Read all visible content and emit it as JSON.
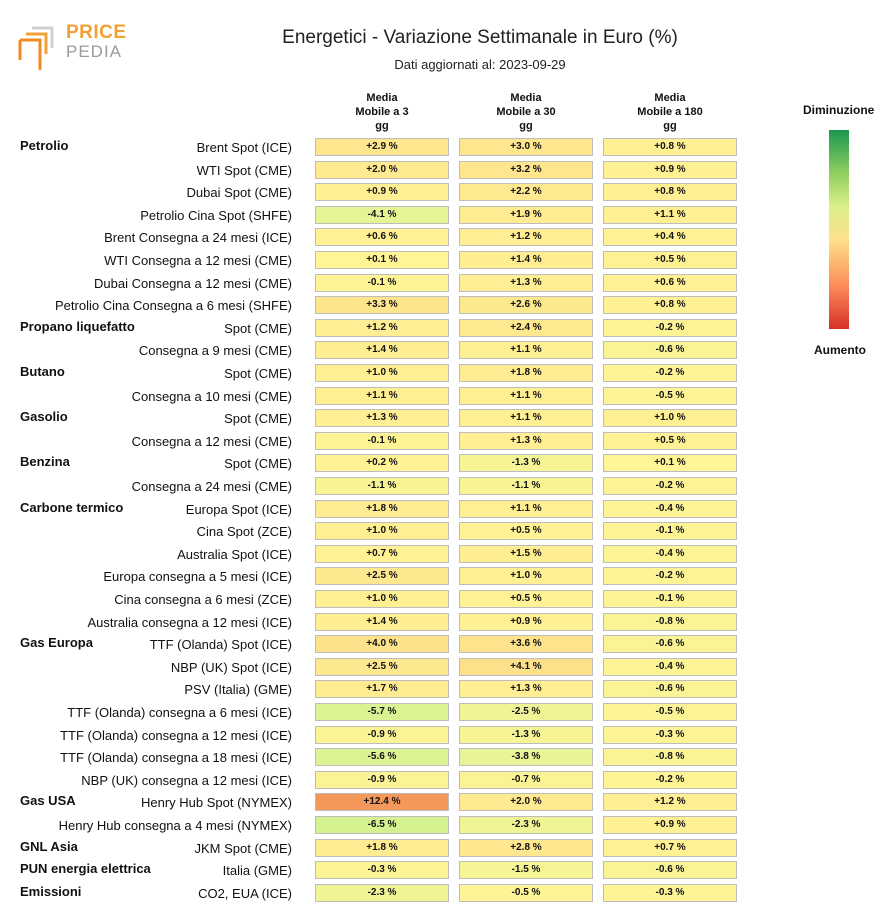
{
  "logo": {
    "line1": "PRICE",
    "line2": "PEDIA"
  },
  "title": "Energetici - Variazione Settimanale in Euro (%)",
  "subtitle": "Dati aggiornati al: 2023-09-29",
  "columns": [
    "Media\nMobile a 3\ngg",
    "Media\nMobile a 30\ngg",
    "Media\nMobile a 180\ngg"
  ],
  "legend": {
    "top": "Diminuzione",
    "bottom": "Aumento"
  },
  "colors": {
    "decrease": "#1a9850",
    "neutral": "#ffffbf",
    "increase": "#d73027"
  },
  "chart_data": {
    "type": "heatmap",
    "title": "Energetici - Variazione Settimanale in Euro (%)",
    "columns": [
      "Media Mobile a 3 gg",
      "Media Mobile a 30 gg",
      "Media Mobile a 180 gg"
    ],
    "groups": [
      {
        "name": "Petrolio",
        "rows": [
          {
            "label": "Brent Spot (ICE)",
            "values": [
              "+2.9 %",
              "+3.0 %",
              "+0.8 %"
            ]
          },
          {
            "label": "WTI Spot (CME)",
            "values": [
              "+2.0 %",
              "+3.2 %",
              "+0.9 %"
            ]
          },
          {
            "label": "Dubai Spot (CME)",
            "values": [
              "+0.9 %",
              "+2.2 %",
              "+0.8 %"
            ]
          },
          {
            "label": "Petrolio Cina Spot (SHFE)",
            "values": [
              "-4.1 %",
              "+1.9 %",
              "+1.1 %"
            ]
          },
          {
            "label": "Brent Consegna a 24 mesi (ICE)",
            "values": [
              "+0.6 %",
              "+1.2 %",
              "+0.4 %"
            ]
          },
          {
            "label": "WTI Consegna a 12 mesi (CME)",
            "values": [
              "+0.1 %",
              "+1.4 %",
              "+0.5 %"
            ]
          },
          {
            "label": "Dubai Consegna a 12 mesi (CME)",
            "values": [
              "-0.1 %",
              "+1.3 %",
              "+0.6 %"
            ]
          },
          {
            "label": "Petrolio Cina Consegna a 6 mesi (SHFE)",
            "values": [
              "+3.3 %",
              "+2.6 %",
              "+0.8 %"
            ]
          }
        ]
      },
      {
        "name": "Propano liquefatto",
        "rows": [
          {
            "label": "Spot (CME)",
            "values": [
              "+1.2 %",
              "+2.4 %",
              "-0.2 %"
            ]
          },
          {
            "label": "Consegna a 9 mesi (CME)",
            "values": [
              "+1.4 %",
              "+1.1 %",
              "-0.6 %"
            ]
          }
        ]
      },
      {
        "name": "Butano",
        "rows": [
          {
            "label": "Spot (CME)",
            "values": [
              "+1.0 %",
              "+1.8 %",
              "-0.2 %"
            ]
          },
          {
            "label": "Consegna a 10 mesi (CME)",
            "values": [
              "+1.1 %",
              "+1.1 %",
              "-0.5 %"
            ]
          }
        ]
      },
      {
        "name": "Gasolio",
        "rows": [
          {
            "label": "Spot (CME)",
            "values": [
              "+1.3 %",
              "+1.1 %",
              "+1.0 %"
            ]
          },
          {
            "label": "Consegna a 12 mesi (CME)",
            "values": [
              "-0.1 %",
              "+1.3 %",
              "+0.5 %"
            ]
          }
        ]
      },
      {
        "name": "Benzina",
        "rows": [
          {
            "label": "Spot (CME)",
            "values": [
              "+0.2 %",
              "-1.3 %",
              "+0.1 %"
            ]
          },
          {
            "label": "Consegna a 24 mesi (CME)",
            "values": [
              "-1.1 %",
              "-1.1 %",
              "-0.2 %"
            ]
          }
        ]
      },
      {
        "name": "Carbone termico",
        "rows": [
          {
            "label": "Europa Spot (ICE)",
            "values": [
              "+1.8 %",
              "+1.1 %",
              "-0.4 %"
            ]
          },
          {
            "label": "Cina Spot (ZCE)",
            "values": [
              "+1.0 %",
              "+0.5 %",
              "-0.1 %"
            ]
          },
          {
            "label": "Australia Spot (ICE)",
            "values": [
              "+0.7 %",
              "+1.5 %",
              "-0.4 %"
            ]
          },
          {
            "label": "Europa consegna a 5 mesi (ICE)",
            "values": [
              "+2.5 %",
              "+1.0 %",
              "-0.2 %"
            ]
          },
          {
            "label": "Cina consegna a 6 mesi (ZCE)",
            "values": [
              "+1.0 %",
              "+0.5 %",
              "-0.1 %"
            ]
          },
          {
            "label": "Australia consegna a 12 mesi (ICE)",
            "values": [
              "+1.4 %",
              "+0.9 %",
              "-0.8 %"
            ]
          }
        ]
      },
      {
        "name": "Gas Europa",
        "rows": [
          {
            "label": "TTF (Olanda) Spot (ICE)",
            "values": [
              "+4.0 %",
              "+3.6 %",
              "-0.6 %"
            ]
          },
          {
            "label": "NBP (UK) Spot (ICE)",
            "values": [
              "+2.5 %",
              "+4.1 %",
              "-0.4 %"
            ]
          },
          {
            "label": "PSV (Italia) (GME)",
            "values": [
              "+1.7 %",
              "+1.3 %",
              "-0.6 %"
            ]
          },
          {
            "label": "TTF (Olanda) consegna a 6 mesi (ICE)",
            "values": [
              "-5.7 %",
              "-2.5 %",
              "-0.5 %"
            ]
          },
          {
            "label": "TTF (Olanda) consegna a 12 mesi (ICE)",
            "values": [
              "-0.9 %",
              "-1.3 %",
              "-0.3 %"
            ]
          },
          {
            "label": "TTF (Olanda) consegna a 18 mesi (ICE)",
            "values": [
              "-5.6 %",
              "-3.8 %",
              "-0.8 %"
            ]
          },
          {
            "label": "NBP (UK) consegna a 12 mesi (ICE)",
            "values": [
              "-0.9 %",
              "-0.7 %",
              "-0.2 %"
            ]
          }
        ]
      },
      {
        "name": "Gas USA",
        "rows": [
          {
            "label": "Henry Hub Spot (NYMEX)",
            "values": [
              "+12.4 %",
              "+2.0 %",
              "+1.2 %"
            ]
          },
          {
            "label": "Henry Hub consegna a 4 mesi (NYMEX)",
            "values": [
              "-6.5 %",
              "-2.3 %",
              "+0.9 %"
            ]
          }
        ]
      },
      {
        "name": "GNL Asia",
        "rows": [
          {
            "label": "JKM Spot (CME)",
            "values": [
              "+1.8 %",
              "+2.8 %",
              "+0.7 %"
            ]
          }
        ]
      },
      {
        "name": "PUN energia elettrica",
        "rows": [
          {
            "label": "Italia (GME)",
            "values": [
              "-0.3 %",
              "-1.5 %",
              "-0.6 %"
            ]
          }
        ]
      },
      {
        "name": "Emissioni",
        "rows": [
          {
            "label": "CO2, EUA (ICE)",
            "values": [
              "-2.3 %",
              "-0.5 %",
              "-0.3 %"
            ]
          }
        ]
      }
    ]
  }
}
